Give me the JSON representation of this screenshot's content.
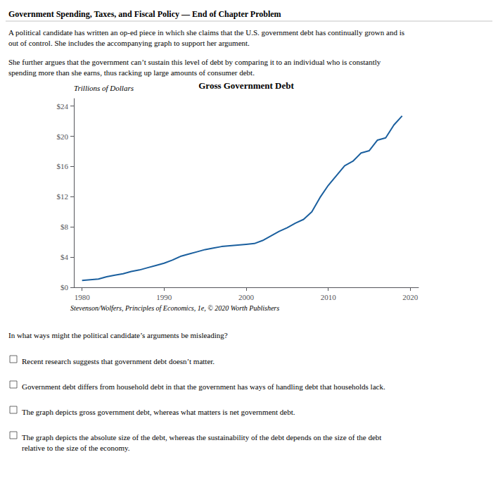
{
  "chart_data": {
    "type": "line",
    "title": "Gross Government Debt",
    "ylabel": "Trillions of Dollars",
    "x": [
      1980,
      1981,
      1982,
      1983,
      1984,
      1985,
      1986,
      1987,
      1988,
      1989,
      1990,
      1991,
      1992,
      1993,
      1994,
      1995,
      1996,
      1997,
      1998,
      1999,
      2000,
      2001,
      2002,
      2003,
      2004,
      2005,
      2006,
      2007,
      2008,
      2009,
      2010,
      2011,
      2012,
      2013,
      2014,
      2015,
      2016,
      2017,
      2018,
      2019
    ],
    "values": [
      0.9,
      1.0,
      1.1,
      1.4,
      1.6,
      1.8,
      2.1,
      2.3,
      2.6,
      2.9,
      3.2,
      3.6,
      4.1,
      4.4,
      4.7,
      5.0,
      5.2,
      5.4,
      5.5,
      5.6,
      5.7,
      5.8,
      6.2,
      6.8,
      7.4,
      7.9,
      8.5,
      9.0,
      10.0,
      11.9,
      13.5,
      14.8,
      16.1,
      16.7,
      17.8,
      18.1,
      19.5,
      19.8,
      21.5,
      22.7
    ],
    "color": "#1a5f9e",
    "xlim": [
      1979,
      2021
    ],
    "xticks": [
      1980,
      1990,
      2000,
      2010,
      2020
    ],
    "ylim": [
      0,
      25
    ],
    "yticks": [
      {
        "value": 0,
        "label": "$0"
      },
      {
        "value": 4,
        "label": "$4"
      },
      {
        "value": 8,
        "label": "$8"
      },
      {
        "value": 12,
        "label": "$12"
      },
      {
        "value": 16,
        "label": "$16"
      },
      {
        "value": 20,
        "label": "$20"
      },
      {
        "value": 24,
        "label": "$24"
      }
    ],
    "grid": false,
    "annotations": [
      "Government Spending, Taxes, and Fiscal Policy — End of Chapter Problem",
      "A political candidate has written an op-ed piece in which she claims that the U.S. government debt has continually grown and is\nout of control. She includes the accompanying graph to support her argument.",
      "She further argues that the government can’t sustain this level of debt by comparing it to an individual who is constantly\nspending more than she earns, thus racking up large amounts of consumer debt.",
      "Stevenson/Wolfers, Principles of Economics, 1e, © 2020 Worth Publishers",
      "In what ways might the political candidate’s arguments be misleading?",
      "Recent research suggests that government debt doesn’t matter.",
      "Government debt differs from household debt in that the government has ways of handling debt that households lack.",
      "The graph depicts gross government debt, whereas what matters is net government debt.",
      "The graph depicts the absolute size of the debt, whereas the sustainability of the debt depends on the size of the debt\nrelative to the size of the economy."
    ]
  }
}
